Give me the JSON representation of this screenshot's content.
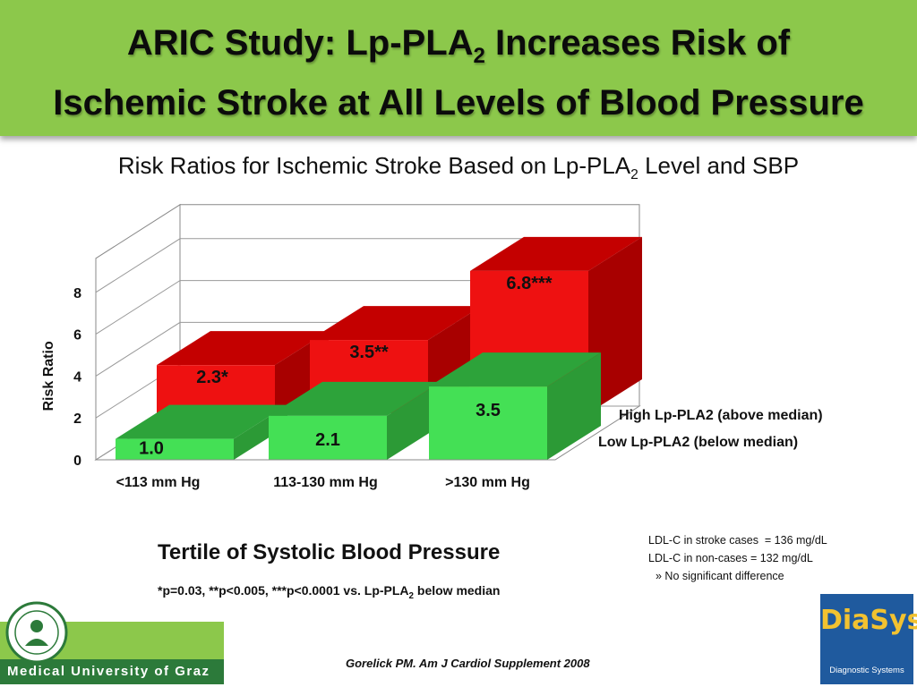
{
  "header": {
    "title_line1_pre": "ARIC Study: Lp-PLA",
    "title_line1_sub": "2",
    "title_line1_post": " Increases Risk of",
    "title_line2": "Ischemic Stroke at All Levels of Blood Pressure"
  },
  "subtitle": {
    "pre": "Risk Ratios for Ischemic Stroke Based on Lp-PLA",
    "sub": "2",
    "post": " Level and SBP"
  },
  "chart_data": {
    "type": "bar",
    "style": "3d",
    "ylabel": "Risk Ratio",
    "xlabel": "Tertile of Systolic Blood Pressure",
    "yticks": [
      "0",
      "2",
      "4",
      "6",
      "8"
    ],
    "ylim": [
      0,
      8
    ],
    "categories": [
      "<113 mm Hg",
      "113-130 mm Hg",
      ">130 mm Hg"
    ],
    "series": [
      {
        "name": "High Lp-PLA2 (above median)",
        "values": [
          2.3,
          3.5,
          6.8
        ],
        "labels": [
          "2.3*",
          "3.5**",
          "6.8***"
        ],
        "color": "#ee1111"
      },
      {
        "name": "Low Lp-PLA2 (below median)",
        "values": [
          1.0,
          2.1,
          3.5
        ],
        "labels": [
          "1.0",
          "2.1",
          "3.5"
        ],
        "color": "#44e055"
      }
    ],
    "footnote_pre": "*p=0.03, **p<0.005, ***p<0.0001 vs. Lp-PLA",
    "footnote_sub": "2",
    "footnote_post": " below median"
  },
  "notes": {
    "ldl_cases": "LDL-C in stroke cases  = 136 mg/dL",
    "ldl_noncases": "LDL-C in non-cases = 132 mg/dL",
    "ldl_conclusion": "» No significant difference"
  },
  "citation": "Gorelick PM. Am J Cardiol Supplement 2008",
  "logos": {
    "university": "Medical University of Graz",
    "company_name": "DiaSys",
    "company_tagline": "Diagnostic Systems"
  },
  "colors": {
    "banner": "#8cc84b",
    "high_front": "#ee1111",
    "high_top": "#c40000",
    "high_side": "#a80000",
    "low_front": "#44e055",
    "low_top": "#2da33a",
    "low_side": "#2c9a36"
  }
}
